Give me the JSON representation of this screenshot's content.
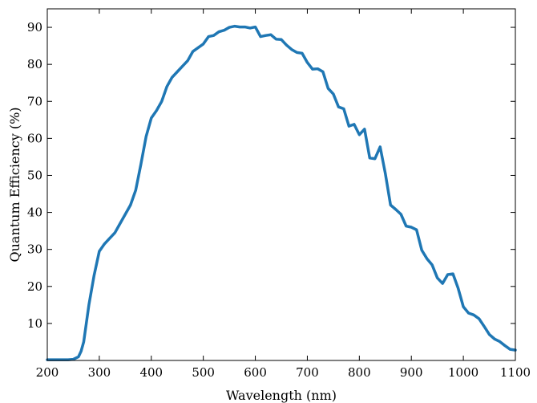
{
  "chart_data": {
    "type": "line",
    "title": "",
    "xlabel": "Wavelength (nm)",
    "ylabel": "Quantum Efficiency (%)",
    "xlim": [
      200,
      1100
    ],
    "ylim": [
      0,
      95
    ],
    "xticks": [
      200,
      300,
      400,
      500,
      600,
      700,
      800,
      900,
      1000,
      1100
    ],
    "yticks": [
      10,
      20,
      30,
      40,
      50,
      60,
      70,
      80,
      90
    ],
    "grid": false,
    "legend": "none",
    "series": [
      {
        "color": "#1f77b4",
        "x": [
          200,
          220,
          240,
          250,
          260,
          265,
          270,
          275,
          280,
          290,
          300,
          310,
          320,
          330,
          340,
          350,
          360,
          370,
          380,
          390,
          400,
          410,
          420,
          430,
          440,
          450,
          460,
          470,
          480,
          490,
          500,
          510,
          520,
          530,
          540,
          550,
          560,
          570,
          580,
          590,
          600,
          610,
          620,
          630,
          640,
          650,
          660,
          670,
          680,
          690,
          700,
          710,
          720,
          730,
          740,
          750,
          760,
          770,
          780,
          790,
          800,
          810,
          820,
          830,
          840,
          850,
          860,
          870,
          880,
          890,
          900,
          910,
          920,
          930,
          940,
          950,
          960,
          970,
          980,
          990,
          1000,
          1010,
          1020,
          1030,
          1040,
          1050,
          1060,
          1070,
          1080,
          1090,
          1100
        ],
        "y": [
          0.2,
          0.2,
          0.2,
          0.3,
          1.0,
          2.5,
          5.0,
          10,
          15,
          23,
          29.5,
          31.5,
          33,
          34.5,
          37,
          39.5,
          42,
          46,
          53,
          60.5,
          65.5,
          67.5,
          70,
          74,
          76.5,
          78,
          79.5,
          81,
          83.5,
          84.5,
          85.5,
          87.5,
          87.8,
          88.8,
          89.2,
          90,
          90.3,
          90.1,
          90.1,
          89.8,
          90.1,
          87.5,
          87.8,
          88,
          86.8,
          86.7,
          85.2,
          84,
          83.2,
          83,
          80.5,
          78.7,
          78.8,
          78,
          73.5,
          72,
          68.5,
          68,
          63.3,
          63.8,
          61,
          62.5,
          54.7,
          54.5,
          57.7,
          50.5,
          42,
          40.8,
          39.5,
          36.3,
          36,
          35.3,
          29.8,
          27.5,
          25.8,
          22.3,
          20.8,
          23.2,
          23.4,
          19.5,
          14.5,
          12.8,
          12.3,
          11.3,
          9.2,
          7,
          5.8,
          5.1,
          4,
          3,
          2.8
        ]
      }
    ]
  }
}
